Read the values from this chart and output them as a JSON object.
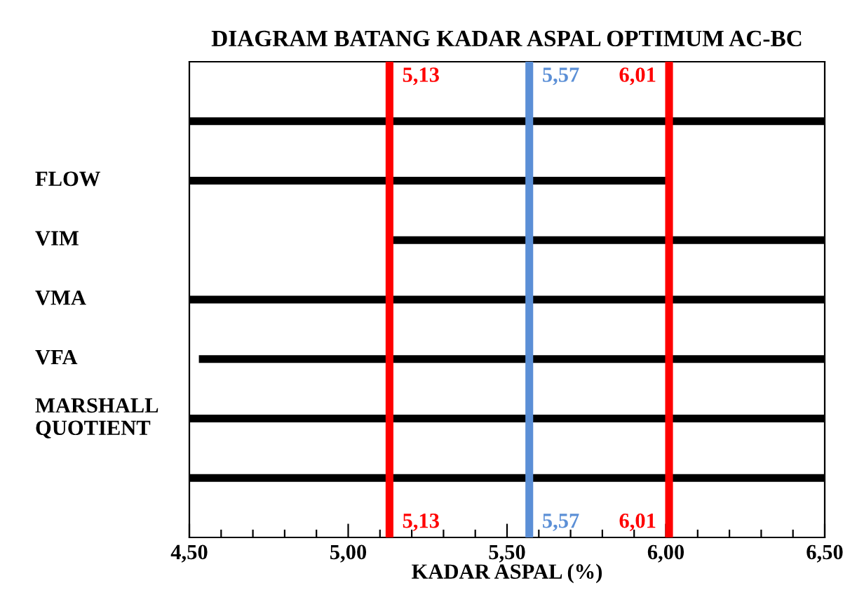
{
  "chart_data": {
    "type": "bar",
    "orientation": "horizontal",
    "title": "DIAGRAM BATANG KADAR ASPAL OPTIMUM AC-BC",
    "xlabel": "KADAR ASPAL (%)",
    "categories": [
      null,
      "FLOW",
      "VIM",
      "VMA",
      "VFA",
      "MARSHALL\nQUOTIENT",
      null
    ],
    "base": [
      4.5,
      4.5,
      5.13,
      4.5,
      4.53,
      4.5,
      4.5
    ],
    "values": [
      2.0,
      1.5,
      1.37,
      2.0,
      1.97,
      2.0,
      2.0
    ],
    "color": "#000000",
    "xlim": [
      4.5,
      6.5
    ],
    "xticks": [
      {
        "value": 4.5,
        "label": "4,50"
      },
      {
        "value": 4.6,
        "label": null
      },
      {
        "value": 4.7,
        "label": null
      },
      {
        "value": 4.8,
        "label": null
      },
      {
        "value": 4.9,
        "label": null
      },
      {
        "value": 5.0,
        "label": "5,00"
      },
      {
        "value": 5.1,
        "label": null
      },
      {
        "value": 5.2,
        "label": null
      },
      {
        "value": 5.3,
        "label": null
      },
      {
        "value": 5.4,
        "label": null
      },
      {
        "value": 5.5,
        "label": "5,50"
      },
      {
        "value": 5.6,
        "label": null
      },
      {
        "value": 5.7,
        "label": null
      },
      {
        "value": 5.8,
        "label": null
      },
      {
        "value": 5.9,
        "label": null
      },
      {
        "value": 6.0,
        "label": "6,00"
      },
      {
        "value": 6.1,
        "label": null
      },
      {
        "value": 6.2,
        "label": null
      },
      {
        "value": 6.3,
        "label": null
      },
      {
        "value": 6.4,
        "label": null
      },
      {
        "value": 6.5,
        "label": "6,50"
      }
    ],
    "ref_lines": [
      {
        "axis": "x",
        "value": 5.13,
        "label": "5,13",
        "color": "#ff0000"
      },
      {
        "axis": "x",
        "value": 5.57,
        "label": "5,57",
        "color": "#5b8fd6"
      },
      {
        "axis": "x",
        "value": 6.01,
        "label": "6,01",
        "color": "#ff0000"
      }
    ],
    "annotations": [
      {
        "text": "5,13",
        "x": 5.13
      },
      {
        "text": "5,57",
        "x": 5.57
      },
      {
        "text": "6,01",
        "x": 6.01
      }
    ],
    "grid": false
  }
}
